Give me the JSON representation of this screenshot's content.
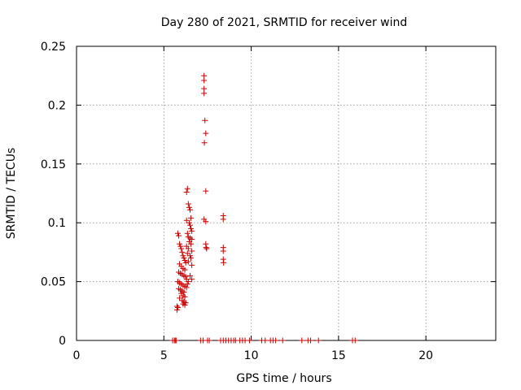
{
  "chart_data": {
    "type": "scatter",
    "title": "Day 280 of 2021, SRMTID for receiver wind",
    "xlabel": "GPS time / hours",
    "ylabel": "SRMTID / TECUs",
    "xlim": [
      0,
      24
    ],
    "ylim": [
      0,
      0.25
    ],
    "xticks": [
      0,
      5,
      10,
      15,
      20
    ],
    "yticks": [
      0,
      0.05,
      0.1,
      0.15,
      0.2,
      0.25
    ],
    "xtick_labels": [
      "0",
      "5",
      "10",
      "15",
      "20"
    ],
    "ytick_labels": [
      "0",
      "0.05",
      "0.1",
      "0.15",
      "0.2",
      "0.25"
    ],
    "grid": true,
    "marker": "+",
    "color": "#cc0000",
    "series": [
      {
        "name": "SRMTID",
        "x": [
          7.3,
          7.3,
          7.3,
          7.3,
          7.35,
          7.4,
          7.32,
          7.4,
          7.4,
          7.3,
          7.4,
          7.42,
          7.45,
          8.4,
          8.4,
          8.4,
          8.4,
          8.4,
          8.42,
          6.3,
          6.35,
          6.4,
          6.45,
          6.5,
          6.55,
          6.3,
          6.45,
          6.5,
          6.55,
          6.6,
          6.35,
          6.4,
          6.5,
          6.6,
          6.45,
          6.55,
          6.3,
          6.4,
          6.6,
          6.35,
          6.5,
          6.55,
          6.4,
          6.6,
          6.5,
          6.6,
          5.8,
          5.85,
          5.9,
          5.95,
          6.0,
          6.05,
          6.1,
          6.15,
          6.2,
          6.25,
          5.9,
          6.0,
          6.1,
          6.2,
          5.85,
          5.95,
          6.05,
          6.15,
          6.25,
          6.3,
          5.8,
          5.9,
          6.0,
          6.1,
          6.2,
          6.3,
          5.85,
          5.95,
          6.05,
          6.15,
          6.0,
          6.1,
          6.2,
          5.9,
          6.05,
          6.15,
          6.25,
          6.1,
          6.2,
          5.75,
          5.8,
          5.75,
          6.35,
          6.4,
          5.5,
          5.6,
          5.65,
          5.7,
          7.1,
          7.25,
          7.5,
          7.6,
          8.25,
          8.4,
          8.55,
          8.7,
          8.85,
          9.0,
          9.1,
          9.35,
          9.5,
          9.65,
          9.9,
          10.6,
          10.8,
          11.1,
          11.25,
          11.4,
          11.8,
          12.9,
          13.25,
          13.4,
          13.85,
          15.8,
          15.95
        ],
        "y": [
          0.225,
          0.221,
          0.214,
          0.21,
          0.187,
          0.176,
          0.168,
          0.127,
          0.101,
          0.103,
          0.082,
          0.079,
          0.078,
          0.106,
          0.103,
          0.079,
          0.076,
          0.069,
          0.066,
          0.126,
          0.129,
          0.116,
          0.113,
          0.111,
          0.104,
          0.102,
          0.1,
          0.098,
          0.095,
          0.093,
          0.091,
          0.088,
          0.087,
          0.086,
          0.084,
          0.082,
          0.08,
          0.078,
          0.076,
          0.074,
          0.072,
          0.07,
          0.067,
          0.064,
          0.055,
          0.052,
          0.091,
          0.089,
          0.082,
          0.08,
          0.078,
          0.075,
          0.072,
          0.07,
          0.068,
          0.066,
          0.065,
          0.063,
          0.061,
          0.06,
          0.058,
          0.057,
          0.056,
          0.055,
          0.054,
          0.052,
          0.05,
          0.049,
          0.048,
          0.047,
          0.046,
          0.045,
          0.044,
          0.043,
          0.042,
          0.041,
          0.04,
          0.038,
          0.037,
          0.036,
          0.034,
          0.033,
          0.032,
          0.031,
          0.03,
          0.029,
          0.028,
          0.026,
          0.048,
          0.05,
          0,
          0,
          0,
          0,
          0,
          0,
          0,
          0,
          0,
          0,
          0,
          0,
          0,
          0,
          0,
          0,
          0,
          0,
          0,
          0,
          0,
          0,
          0,
          0,
          0,
          0,
          0,
          0,
          0,
          0,
          0
        ]
      }
    ]
  }
}
